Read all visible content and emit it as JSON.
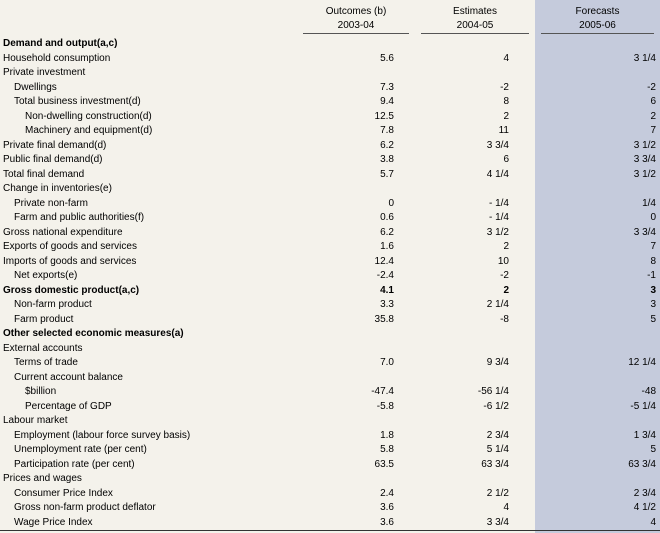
{
  "headers": {
    "col1": {
      "line1": "Outcomes (b)",
      "line2": "2003-04"
    },
    "col2": {
      "line1": "Estimates",
      "line2": "2004-05"
    },
    "col3": {
      "line1": "Forecasts",
      "line2": "2005-06"
    }
  },
  "rows": [
    {
      "label": "Demand and output(a,c)",
      "level": 0,
      "bold": true,
      "v1": "",
      "v2": "",
      "v3": ""
    },
    {
      "label": "Household consumption",
      "level": 0,
      "bold": false,
      "v1": "5.6",
      "v2": "4",
      "v3": "3 1/4"
    },
    {
      "label": "Private investment",
      "level": 0,
      "bold": false,
      "v1": "",
      "v2": "",
      "v3": ""
    },
    {
      "label": "Dwellings",
      "level": 1,
      "bold": false,
      "v1": "7.3",
      "v2": "-2",
      "v3": "-2"
    },
    {
      "label": "Total business investment(d)",
      "level": 1,
      "bold": false,
      "v1": "9.4",
      "v2": "8",
      "v3": "6"
    },
    {
      "label": "Non-dwelling construction(d)",
      "level": 2,
      "bold": false,
      "v1": "12.5",
      "v2": "2",
      "v3": "2"
    },
    {
      "label": "Machinery and equipment(d)",
      "level": 2,
      "bold": false,
      "v1": "7.8",
      "v2": "11",
      "v3": "7"
    },
    {
      "label": "Private final demand(d)",
      "level": 0,
      "bold": false,
      "v1": "6.2",
      "v2": "3 3/4",
      "v3": "3 1/2"
    },
    {
      "label": "Public final demand(d)",
      "level": 0,
      "bold": false,
      "v1": "3.8",
      "v2": "6",
      "v3": "3 3/4"
    },
    {
      "label": "Total final demand",
      "level": 0,
      "bold": false,
      "v1": "5.7",
      "v2": "4 1/4",
      "v3": "3 1/2"
    },
    {
      "label": "Change in inventories(e)",
      "level": 0,
      "bold": false,
      "v1": "",
      "v2": "",
      "v3": ""
    },
    {
      "label": "Private non-farm",
      "level": 1,
      "bold": false,
      "v1": "0",
      "v2": "- 1/4",
      "v3": "1/4"
    },
    {
      "label": "Farm and public authorities(f)",
      "level": 1,
      "bold": false,
      "v1": "0.6",
      "v2": "- 1/4",
      "v3": "0"
    },
    {
      "label": "Gross national expenditure",
      "level": 0,
      "bold": false,
      "v1": "6.2",
      "v2": "3 1/2",
      "v3": "3 3/4"
    },
    {
      "label": "Exports of goods and services",
      "level": 0,
      "bold": false,
      "v1": "1.6",
      "v2": "2",
      "v3": "7"
    },
    {
      "label": "Imports of goods and services",
      "level": 0,
      "bold": false,
      "v1": "12.4",
      "v2": "10",
      "v3": "8"
    },
    {
      "label": "Net exports(e)",
      "level": 1,
      "bold": false,
      "v1": "-2.4",
      "v2": "-2",
      "v3": "-1"
    },
    {
      "label": "Gross domestic product(a,c)",
      "level": 0,
      "bold": true,
      "v1": "4.1",
      "v2": "2",
      "v3": "3"
    },
    {
      "label": "Non-farm product",
      "level": 1,
      "bold": false,
      "v1": "3.3",
      "v2": "2 1/4",
      "v3": "3"
    },
    {
      "label": "Farm product",
      "level": 1,
      "bold": false,
      "v1": "35.8",
      "v2": "-8",
      "v3": "5"
    },
    {
      "label": "Other selected economic measures(a)",
      "level": 0,
      "bold": true,
      "v1": "",
      "v2": "",
      "v3": ""
    },
    {
      "label": "External accounts",
      "level": 0,
      "bold": false,
      "v1": "",
      "v2": "",
      "v3": ""
    },
    {
      "label": "Terms of trade",
      "level": 1,
      "bold": false,
      "v1": "7.0",
      "v2": "9 3/4",
      "v3": "12 1/4"
    },
    {
      "label": "Current account balance",
      "level": 1,
      "bold": false,
      "v1": "",
      "v2": "",
      "v3": ""
    },
    {
      "label": "$billion",
      "level": 2,
      "bold": false,
      "v1": "-47.4",
      "v2": "-56 1/4",
      "v3": "-48"
    },
    {
      "label": "Percentage of GDP",
      "level": 2,
      "bold": false,
      "v1": "-5.8",
      "v2": "-6 1/2",
      "v3": "-5 1/4"
    },
    {
      "label": "Labour market",
      "level": 0,
      "bold": false,
      "v1": "",
      "v2": "",
      "v3": ""
    },
    {
      "label": "Employment (labour force survey basis)",
      "level": 1,
      "bold": false,
      "v1": "1.8",
      "v2": "2 3/4",
      "v3": "1 3/4"
    },
    {
      "label": "Unemployment rate (per cent)",
      "level": 1,
      "bold": false,
      "v1": "5.8",
      "v2": "5 1/4",
      "v3": "5"
    },
    {
      "label": "Participation rate (per cent)",
      "level": 1,
      "bold": false,
      "v1": "63.5",
      "v2": "63 3/4",
      "v3": "63 3/4"
    },
    {
      "label": "Prices and wages",
      "level": 0,
      "bold": false,
      "v1": "",
      "v2": "",
      "v3": ""
    },
    {
      "label": "Consumer Price Index",
      "level": 1,
      "bold": false,
      "v1": "2.4",
      "v2": "2 1/2",
      "v3": "2 3/4"
    },
    {
      "label": "Gross non-farm product deflator",
      "level": 1,
      "bold": false,
      "v1": "3.6",
      "v2": "4",
      "v3": "4 1/2"
    },
    {
      "label": "Wage Price Index",
      "level": 1,
      "bold": false,
      "v1": "3.6",
      "v2": "3 3/4",
      "v3": "4"
    }
  ]
}
